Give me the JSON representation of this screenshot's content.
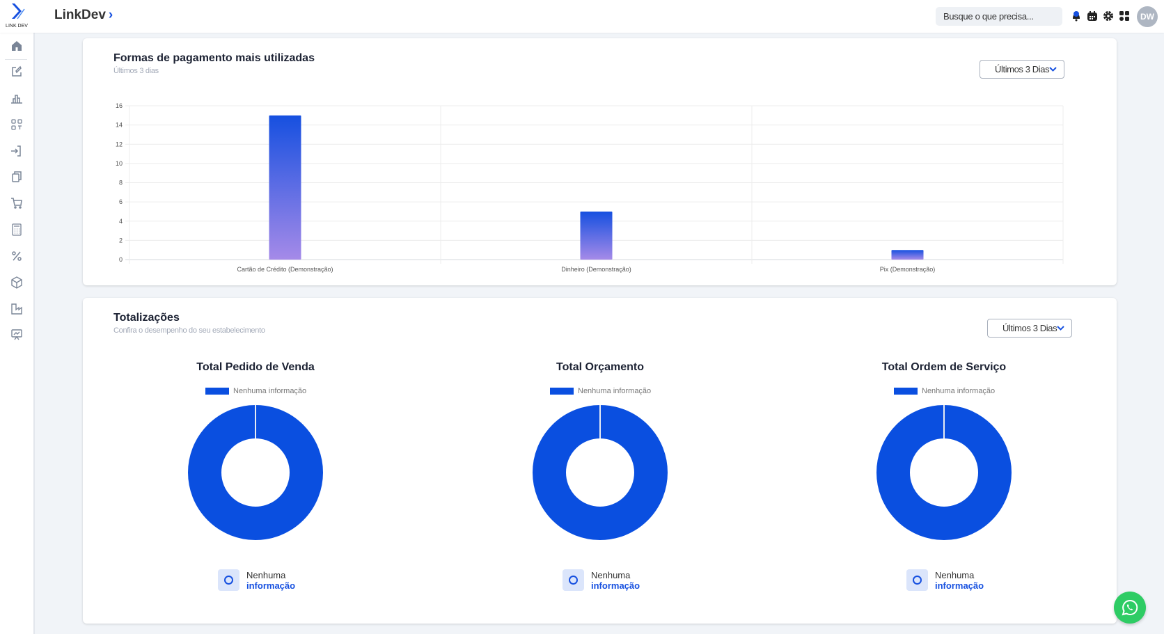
{
  "header": {
    "logo_text": "LINK DEV",
    "brand": "LinkDev",
    "search_placeholder": "Busque o que precisa...",
    "avatar_initials": "DW"
  },
  "sidebar": {
    "items": [
      "home",
      "edit",
      "bar-chart",
      "qr-scan",
      "login",
      "copy",
      "cart",
      "calculator",
      "percent",
      "box",
      "factory",
      "presentation"
    ]
  },
  "payments": {
    "title": "Formas de pagamento mais utilizadas",
    "subtitle": "Últimos 3 dias",
    "dropdown": "Últimos 3 Dias"
  },
  "chart_data": {
    "type": "bar",
    "title": "Formas de pagamento mais utilizadas",
    "categories": [
      "Cartão de Crédito (Demonstração)",
      "Dinheiro (Demonstração)",
      "Pix (Demonstração)"
    ],
    "values": [
      15,
      5,
      1
    ],
    "ylim": [
      0,
      16
    ],
    "yticks": [
      0,
      2,
      4,
      6,
      8,
      10,
      12,
      14,
      16
    ],
    "grid": true,
    "colors": {
      "top": "#1650e0",
      "bottom": "#a58ae8"
    }
  },
  "totals": {
    "title": "Totalizações",
    "subtitle": "Confira o desempenho do seu estabelecimento",
    "dropdown": "Últimos 3 Dias",
    "charts": [
      {
        "title": "Total Pedido de Venda",
        "legend": "Nenhuma informação",
        "info1": "Nenhuma",
        "info2": "informação"
      },
      {
        "title": "Total Orçamento",
        "legend": "Nenhuma informação",
        "info1": "Nenhuma",
        "info2": "informação"
      },
      {
        "title": "Total Ordem de Serviço",
        "legend": "Nenhuma informação",
        "info1": "Nenhuma",
        "info2": "informação"
      }
    ],
    "donut_color": "#0a4fe0"
  }
}
